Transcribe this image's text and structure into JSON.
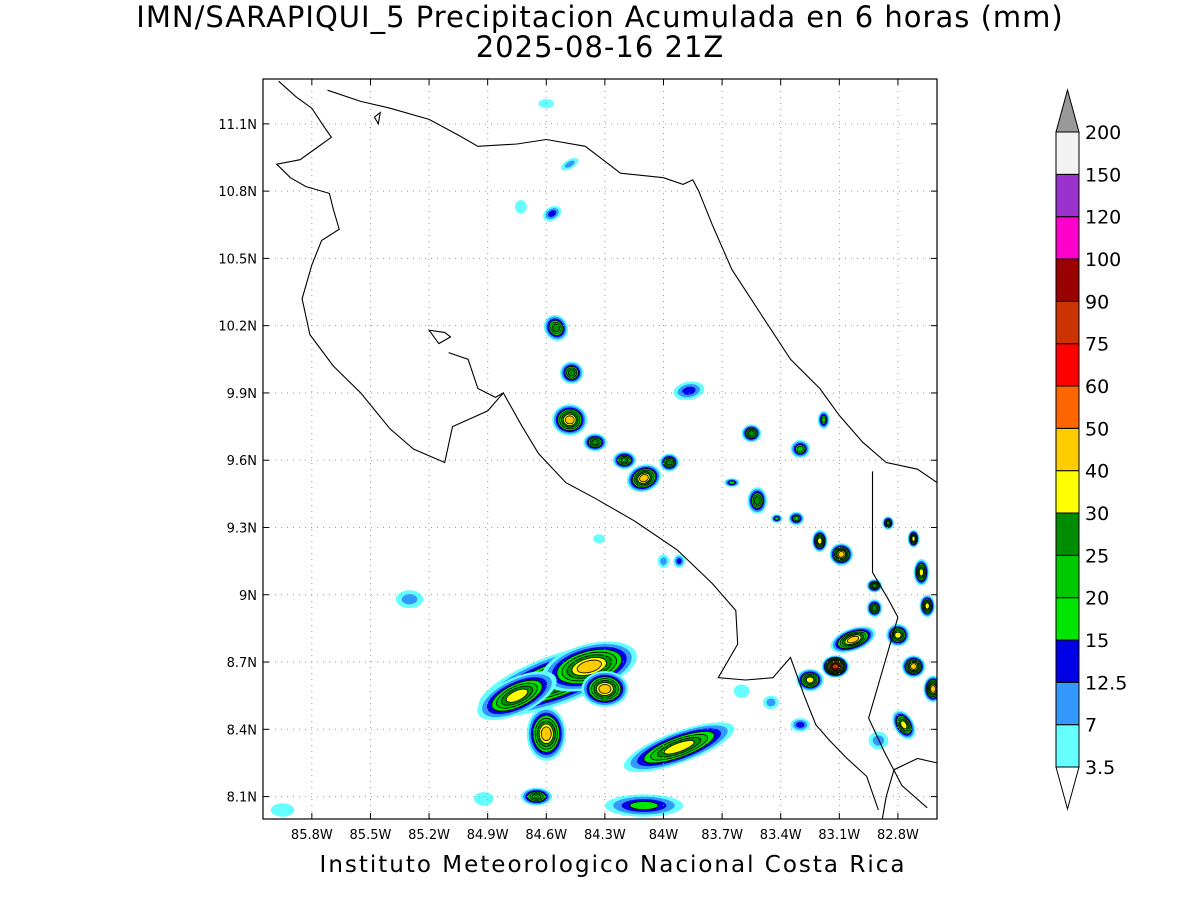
{
  "title": {
    "line1": "IMN/SARAPIQUI_5 Precipitacion Acumulada en 6 horas (mm)",
    "line2": "2025-08-16 21Z"
  },
  "footer": "Instituto Meteorologico Nacional Costa Rica",
  "map": {
    "lon_range": [
      -86.05,
      -82.6
    ],
    "lat_range": [
      8.0,
      11.3
    ],
    "lat_ticks": [
      {
        "value": 11.1,
        "label": "11.1N"
      },
      {
        "value": 10.8,
        "label": "10.8N"
      },
      {
        "value": 10.5,
        "label": "10.5N"
      },
      {
        "value": 10.2,
        "label": "10.2N"
      },
      {
        "value": 9.9,
        "label": "9.9N"
      },
      {
        "value": 9.6,
        "label": "9.6N"
      },
      {
        "value": 9.3,
        "label": "9.3N"
      },
      {
        "value": 9.0,
        "label": "9N"
      },
      {
        "value": 8.7,
        "label": "8.7N"
      },
      {
        "value": 8.4,
        "label": "8.4N"
      },
      {
        "value": 8.1,
        "label": "8.1N"
      }
    ],
    "lon_ticks": [
      {
        "value": -85.8,
        "label": "85.8W"
      },
      {
        "value": -85.5,
        "label": "85.5W"
      },
      {
        "value": -85.2,
        "label": "85.2W"
      },
      {
        "value": -84.9,
        "label": "84.9W"
      },
      {
        "value": -84.6,
        "label": "84.6W"
      },
      {
        "value": -84.3,
        "label": "84.3W"
      },
      {
        "value": -84.0,
        "label": "84W"
      },
      {
        "value": -83.7,
        "label": "83.7W"
      },
      {
        "value": -83.4,
        "label": "83.4W"
      },
      {
        "value": -83.1,
        "label": "83.1W"
      },
      {
        "value": -82.8,
        "label": "82.8W"
      }
    ],
    "grid": "dotted",
    "coastline": [
      [
        -85.97,
        11.29
      ],
      [
        -85.88,
        11.22
      ],
      [
        -85.8,
        11.17
      ],
      [
        -85.74,
        11.09
      ],
      [
        -85.7,
        11.04
      ],
      [
        -85.78,
        10.99
      ],
      [
        -85.86,
        10.94
      ],
      [
        -85.98,
        10.92
      ],
      [
        -85.91,
        10.86
      ],
      [
        -85.83,
        10.82
      ],
      [
        -85.71,
        10.79
      ],
      [
        -85.69,
        10.72
      ],
      [
        -85.66,
        10.63
      ],
      [
        -85.75,
        10.58
      ],
      [
        -85.8,
        10.47
      ],
      [
        -85.85,
        10.32
      ],
      [
        -85.81,
        10.16
      ],
      [
        -85.69,
        10.02
      ],
      [
        -85.55,
        9.9
      ],
      [
        -85.4,
        9.74
      ],
      [
        -85.28,
        9.65
      ],
      [
        -85.12,
        9.59
      ],
      [
        -85.08,
        9.75
      ],
      [
        -84.9,
        9.82
      ],
      [
        -84.82,
        9.9
      ],
      [
        -84.73,
        9.76
      ],
      [
        -84.64,
        9.63
      ],
      [
        -84.5,
        9.5
      ],
      [
        -84.35,
        9.43
      ],
      [
        -84.15,
        9.33
      ],
      [
        -83.93,
        9.2
      ],
      [
        -83.75,
        9.05
      ],
      [
        -83.63,
        8.93
      ],
      [
        -83.62,
        8.78
      ],
      [
        -83.72,
        8.63
      ],
      [
        -83.58,
        8.62
      ],
      [
        -83.44,
        8.63
      ],
      [
        -83.35,
        8.72
      ],
      [
        -83.28,
        8.55
      ],
      [
        -83.22,
        8.42
      ],
      [
        -83.15,
        8.35
      ],
      [
        -83.06,
        8.27
      ],
      [
        -82.96,
        8.19
      ],
      [
        -82.9,
        8.04
      ]
    ],
    "north_coast": [
      [
        -85.72,
        11.25
      ],
      [
        -85.55,
        11.2
      ],
      [
        -85.4,
        11.17
      ],
      [
        -85.2,
        11.12
      ],
      [
        -85.05,
        11.05
      ],
      [
        -84.95,
        11.0
      ],
      [
        -84.75,
        11.01
      ],
      [
        -84.6,
        11.03
      ],
      [
        -84.4,
        11.0
      ],
      [
        -84.22,
        10.88
      ],
      [
        -84.0,
        10.86
      ],
      [
        -83.9,
        10.83
      ],
      [
        -83.85,
        10.85
      ],
      [
        -83.82,
        10.8
      ],
      [
        -83.75,
        10.65
      ],
      [
        -83.65,
        10.45
      ],
      [
        -83.5,
        10.25
      ],
      [
        -83.35,
        10.05
      ],
      [
        -83.2,
        9.92
      ],
      [
        -83.1,
        9.8
      ],
      [
        -82.98,
        9.68
      ],
      [
        -82.86,
        9.59
      ],
      [
        -82.7,
        9.56
      ],
      [
        -82.6,
        9.5
      ]
    ],
    "nicoya_gulf_coast": [
      [
        -85.1,
        10.08
      ],
      [
        -85.0,
        10.05
      ],
      [
        -84.95,
        9.92
      ],
      [
        -84.86,
        9.88
      ],
      [
        -84.82,
        9.9
      ]
    ],
    "panama_border": [
      [
        -82.93,
        9.55
      ],
      [
        -82.93,
        9.3
      ],
      [
        -82.93,
        9.1
      ],
      [
        -82.85,
        8.98
      ],
      [
        -82.8,
        8.9
      ],
      [
        -82.85,
        8.75
      ],
      [
        -82.9,
        8.6
      ],
      [
        -82.95,
        8.45
      ],
      [
        -82.87,
        8.3
      ],
      [
        -82.78,
        8.15
      ],
      [
        -82.65,
        8.05
      ]
    ],
    "burica_coast": [
      [
        -82.6,
        8.25
      ],
      [
        -82.7,
        8.27
      ],
      [
        -82.82,
        8.22
      ],
      [
        -82.86,
        8.1
      ],
      [
        -82.88,
        8.0
      ]
    ],
    "islands": [
      [
        [
          -85.15,
          10.12
        ],
        [
          -85.2,
          10.18
        ],
        [
          -85.12,
          10.17
        ],
        [
          -85.09,
          10.15
        ]
      ],
      [
        [
          -85.46,
          11.1
        ],
        [
          -85.45,
          11.15
        ],
        [
          -85.48,
          11.13
        ]
      ]
    ],
    "rain_cells": [
      {
        "lon": -84.55,
        "lat": 8.62,
        "rx": 0.42,
        "ry": 0.11,
        "rot": -20,
        "peak": 40
      },
      {
        "lon": -84.38,
        "lat": 8.68,
        "rx": 0.25,
        "ry": 0.1,
        "rot": -15,
        "peak": 40
      },
      {
        "lon": -84.75,
        "lat": 8.55,
        "rx": 0.22,
        "ry": 0.08,
        "rot": -25,
        "peak": 30
      },
      {
        "lon": -84.6,
        "lat": 8.38,
        "rx": 0.1,
        "ry": 0.12,
        "rot": 0,
        "peak": 40
      },
      {
        "lon": -84.3,
        "lat": 8.58,
        "rx": 0.12,
        "ry": 0.08,
        "rot": 0,
        "peak": 40
      },
      {
        "lon": -83.92,
        "lat": 8.32,
        "rx": 0.3,
        "ry": 0.07,
        "rot": -20,
        "peak": 30
      },
      {
        "lon": -84.65,
        "lat": 8.1,
        "rx": 0.08,
        "ry": 0.04,
        "rot": 0,
        "peak": 25
      },
      {
        "lon": -84.1,
        "lat": 8.06,
        "rx": 0.2,
        "ry": 0.05,
        "rot": 0,
        "peak": 15
      },
      {
        "lon": -84.55,
        "lat": 10.19,
        "rx": 0.06,
        "ry": 0.06,
        "rot": -30,
        "peak": 25
      },
      {
        "lon": -84.47,
        "lat": 9.99,
        "rx": 0.06,
        "ry": 0.05,
        "rot": 0,
        "peak": 25
      },
      {
        "lon": -84.48,
        "lat": 9.78,
        "rx": 0.09,
        "ry": 0.07,
        "rot": 0,
        "peak": 40
      },
      {
        "lon": -84.35,
        "lat": 9.68,
        "rx": 0.06,
        "ry": 0.04,
        "rot": 0,
        "peak": 25
      },
      {
        "lon": -84.2,
        "lat": 9.6,
        "rx": 0.06,
        "ry": 0.04,
        "rot": 0,
        "peak": 25
      },
      {
        "lon": -84.1,
        "lat": 9.52,
        "rx": 0.09,
        "ry": 0.06,
        "rot": -20,
        "peak": 40
      },
      {
        "lon": -83.97,
        "lat": 9.59,
        "rx": 0.05,
        "ry": 0.04,
        "rot": 0,
        "peak": 25
      },
      {
        "lon": -83.87,
        "lat": 9.91,
        "rx": 0.08,
        "ry": 0.04,
        "rot": -10,
        "peak": 12.5
      },
      {
        "lon": -83.55,
        "lat": 9.72,
        "rx": 0.05,
        "ry": 0.04,
        "rot": 0,
        "peak": 25
      },
      {
        "lon": -83.52,
        "lat": 9.42,
        "rx": 0.05,
        "ry": 0.06,
        "rot": 0,
        "peak": 25
      },
      {
        "lon": -83.2,
        "lat": 9.24,
        "rx": 0.04,
        "ry": 0.05,
        "rot": 0,
        "peak": 30
      },
      {
        "lon": -83.09,
        "lat": 9.18,
        "rx": 0.06,
        "ry": 0.05,
        "rot": 0,
        "peak": 40
      },
      {
        "lon": -83.03,
        "lat": 8.8,
        "rx": 0.12,
        "ry": 0.05,
        "rot": -20,
        "peak": 40
      },
      {
        "lon": -83.12,
        "lat": 8.68,
        "rx": 0.07,
        "ry": 0.05,
        "rot": 0,
        "peak": 75
      },
      {
        "lon": -83.25,
        "lat": 8.62,
        "rx": 0.07,
        "ry": 0.05,
        "rot": 0,
        "peak": 30
      },
      {
        "lon": -82.8,
        "lat": 8.82,
        "rx": 0.06,
        "ry": 0.05,
        "rot": 0,
        "peak": 30
      },
      {
        "lon": -82.72,
        "lat": 8.68,
        "rx": 0.06,
        "ry": 0.05,
        "rot": 0,
        "peak": 40
      },
      {
        "lon": -82.62,
        "lat": 8.58,
        "rx": 0.05,
        "ry": 0.06,
        "rot": 0,
        "peak": 40
      },
      {
        "lon": -82.77,
        "lat": 8.42,
        "rx": 0.05,
        "ry": 0.07,
        "rot": -30,
        "peak": 30
      },
      {
        "lon": -82.68,
        "lat": 9.1,
        "rx": 0.04,
        "ry": 0.06,
        "rot": 0,
        "peak": 30
      },
      {
        "lon": -82.65,
        "lat": 8.95,
        "rx": 0.04,
        "ry": 0.05,
        "rot": 0,
        "peak": 30
      },
      {
        "lon": -82.92,
        "lat": 9.04,
        "rx": 0.04,
        "ry": 0.03,
        "rot": 0,
        "peak": 25
      },
      {
        "lon": -82.92,
        "lat": 8.94,
        "rx": 0.04,
        "ry": 0.04,
        "rot": 0,
        "peak": 25
      },
      {
        "lon": -82.85,
        "lat": 9.32,
        "rx": 0.03,
        "ry": 0.03,
        "rot": 0,
        "peak": 25
      },
      {
        "lon": -82.72,
        "lat": 9.25,
        "rx": 0.03,
        "ry": 0.04,
        "rot": 0,
        "peak": 30
      },
      {
        "lon": -83.3,
        "lat": 9.65,
        "rx": 0.05,
        "ry": 0.04,
        "rot": 0,
        "peak": 20
      },
      {
        "lon": -83.32,
        "lat": 9.34,
        "rx": 0.04,
        "ry": 0.03,
        "rot": 0,
        "peak": 20
      },
      {
        "lon": -83.18,
        "lat": 9.78,
        "rx": 0.03,
        "ry": 0.04,
        "rot": 0,
        "peak": 20
      },
      {
        "lon": -83.65,
        "lat": 9.5,
        "rx": 0.04,
        "ry": 0.02,
        "rot": 0,
        "peak": 15
      },
      {
        "lon": -83.42,
        "lat": 9.34,
        "rx": 0.03,
        "ry": 0.02,
        "rot": 0,
        "peak": 15
      },
      {
        "lon": -83.92,
        "lat": 9.15,
        "rx": 0.03,
        "ry": 0.03,
        "rot": 0,
        "peak": 12.5
      },
      {
        "lon": -84.48,
        "lat": 10.92,
        "rx": 0.05,
        "ry": 0.02,
        "rot": -30,
        "peak": 7
      },
      {
        "lon": -84.57,
        "lat": 10.7,
        "rx": 0.05,
        "ry": 0.03,
        "rot": -30,
        "peak": 12.5
      },
      {
        "lon": -84.73,
        "lat": 10.73,
        "rx": 0.03,
        "ry": 0.03,
        "rot": 0,
        "peak": 3.5
      },
      {
        "lon": -84.6,
        "lat": 11.19,
        "rx": 0.04,
        "ry": 0.02,
        "rot": 0,
        "peak": 3.5
      },
      {
        "lon": -85.3,
        "lat": 8.98,
        "rx": 0.07,
        "ry": 0.04,
        "rot": 0,
        "peak": 7
      },
      {
        "lon": -85.95,
        "lat": 8.04,
        "rx": 0.06,
        "ry": 0.03,
        "rot": 0,
        "peak": 3.5
      },
      {
        "lon": -84.92,
        "lat": 8.09,
        "rx": 0.05,
        "ry": 0.03,
        "rot": 0,
        "peak": 3.5
      },
      {
        "lon": -83.6,
        "lat": 8.57,
        "rx": 0.04,
        "ry": 0.03,
        "rot": 0,
        "peak": 3.5
      },
      {
        "lon": -83.45,
        "lat": 8.52,
        "rx": 0.04,
        "ry": 0.03,
        "rot": 0,
        "peak": 7
      },
      {
        "lon": -83.3,
        "lat": 8.42,
        "rx": 0.05,
        "ry": 0.03,
        "rot": 0,
        "peak": 12.5
      },
      {
        "lon": -82.9,
        "lat": 8.35,
        "rx": 0.05,
        "ry": 0.04,
        "rot": 0,
        "peak": 7
      },
      {
        "lon": -84.0,
        "lat": 9.15,
        "rx": 0.03,
        "ry": 0.03,
        "rot": 0,
        "peak": 7
      },
      {
        "lon": -84.33,
        "lat": 9.25,
        "rx": 0.03,
        "ry": 0.02,
        "rot": 0,
        "peak": 3.5
      }
    ]
  },
  "legend": {
    "colors": [
      "#ffffff",
      "#66ffff",
      "#3399ff",
      "#0000e6",
      "#00e600",
      "#00c800",
      "#008c00",
      "#ffff00",
      "#ffcc00",
      "#ff6600",
      "#ff0000",
      "#cc3300",
      "#990000",
      "#ff00cc",
      "#9933cc",
      "#f2f2f2",
      "#999999"
    ],
    "levels": [
      3.5,
      7,
      12.5,
      15,
      20,
      25,
      30,
      40,
      50,
      60,
      75,
      90,
      100,
      120,
      150,
      200
    ],
    "labels": [
      "3.5",
      "7",
      "12.5",
      "15",
      "20",
      "25",
      "30",
      "40",
      "50",
      "60",
      "75",
      "90",
      "100",
      "120",
      "150",
      "200"
    ]
  }
}
